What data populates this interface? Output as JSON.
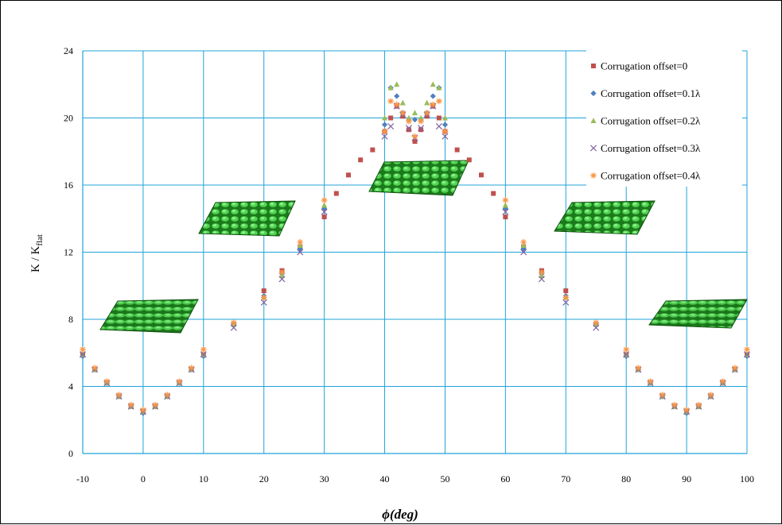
{
  "chart_data": {
    "type": "scatter",
    "title": "",
    "xlabel": "ϕ(deg)",
    "ylabel": "K / K_flat",
    "xlim": [
      -10,
      100
    ],
    "ylim": [
      0,
      24
    ],
    "xticks": [
      -10,
      0,
      10,
      20,
      30,
      40,
      50,
      60,
      70,
      80,
      90,
      100
    ],
    "yticks": [
      0,
      4,
      8,
      12,
      16,
      20,
      24
    ],
    "grid": true,
    "legend_position": "top-right",
    "series": [
      {
        "name": "Corrugation offset=0",
        "marker": "square",
        "color": "#c0504d",
        "x": [
          -10,
          -8,
          -6,
          -4,
          -2,
          0,
          2,
          4,
          6,
          8,
          10,
          15,
          20,
          23,
          26,
          30,
          32,
          34,
          36,
          38,
          40,
          41,
          42,
          43,
          44,
          45,
          46,
          47,
          48,
          49,
          50,
          52,
          54,
          56,
          58,
          60,
          63,
          66,
          70,
          75,
          80,
          82,
          84,
          86,
          88,
          90,
          92,
          94,
          96,
          98,
          100
        ],
        "y": [
          5.9,
          5.0,
          4.2,
          3.4,
          2.8,
          2.5,
          2.8,
          3.4,
          4.2,
          5.0,
          5.9,
          7.7,
          9.7,
          10.9,
          12.3,
          14.1,
          15.5,
          16.6,
          17.5,
          18.1,
          19.2,
          20.0,
          20.7,
          20.1,
          19.3,
          18.6,
          19.3,
          20.1,
          20.7,
          20.0,
          19.2,
          18.1,
          17.5,
          16.6,
          15.5,
          14.1,
          12.3,
          10.9,
          9.7,
          7.7,
          5.9,
          5.0,
          4.2,
          3.4,
          2.8,
          2.5,
          2.8,
          3.4,
          4.2,
          5.0,
          5.9
        ]
      },
      {
        "name": "Corrugation offset=0.1λ",
        "marker": "diamond",
        "color": "#4f81bd",
        "x": [
          -10,
          -8,
          -6,
          -4,
          -2,
          0,
          2,
          4,
          6,
          8,
          10,
          15,
          20,
          23,
          26,
          30,
          40,
          41,
          42,
          43,
          44,
          45,
          46,
          47,
          48,
          49,
          50,
          60,
          63,
          66,
          70,
          75,
          80,
          82,
          84,
          86,
          88,
          90,
          92,
          94,
          96,
          98,
          100
        ],
        "y": [
          5.8,
          5.0,
          4.2,
          3.4,
          2.8,
          2.4,
          2.8,
          3.4,
          4.2,
          5.0,
          5.8,
          7.7,
          9.4,
          10.7,
          12.2,
          14.6,
          19.6,
          21.8,
          21.3,
          20.3,
          19.9,
          19.9,
          19.9,
          20.3,
          21.3,
          21.8,
          19.6,
          14.6,
          12.2,
          10.7,
          9.4,
          7.7,
          5.8,
          5.0,
          4.2,
          3.4,
          2.8,
          2.4,
          2.8,
          3.4,
          4.2,
          5.0,
          5.8
        ]
      },
      {
        "name": "Corrugation offset=0.2λ",
        "marker": "triangle",
        "color": "#9bbb59",
        "x": [
          -10,
          -8,
          -6,
          -4,
          -2,
          0,
          2,
          4,
          6,
          8,
          10,
          15,
          20,
          23,
          26,
          30,
          40,
          41,
          42,
          43,
          44,
          45,
          46,
          47,
          48,
          49,
          50,
          60,
          63,
          66,
          70,
          75,
          80,
          82,
          84,
          86,
          88,
          90,
          92,
          94,
          96,
          98,
          100
        ],
        "y": [
          5.9,
          5.0,
          4.2,
          3.4,
          2.8,
          2.5,
          2.8,
          3.4,
          4.2,
          5.0,
          5.9,
          7.7,
          9.3,
          10.6,
          12.4,
          14.8,
          20.0,
          21.8,
          22.0,
          20.9,
          20.0,
          20.3,
          20.0,
          20.9,
          22.0,
          21.8,
          20.0,
          14.8,
          12.4,
          10.6,
          9.3,
          7.7,
          5.9,
          5.0,
          4.2,
          3.4,
          2.8,
          2.5,
          2.8,
          3.4,
          4.2,
          5.0,
          5.9
        ]
      },
      {
        "name": "Corrugation offset=0.3λ",
        "marker": "x",
        "color": "#8064a2",
        "x": [
          -10,
          -8,
          -6,
          -4,
          -2,
          0,
          2,
          4,
          6,
          8,
          10,
          15,
          20,
          23,
          26,
          30,
          40,
          41,
          42,
          43,
          44,
          45,
          46,
          47,
          48,
          49,
          50,
          60,
          63,
          66,
          70,
          75,
          80,
          82,
          84,
          86,
          88,
          90,
          92,
          94,
          96,
          98,
          100
        ],
        "y": [
          5.9,
          5.0,
          4.2,
          3.4,
          2.8,
          2.5,
          2.8,
          3.4,
          4.2,
          5.0,
          5.9,
          7.5,
          9.0,
          10.4,
          12.0,
          14.4,
          18.9,
          19.5,
          20.7,
          20.2,
          19.4,
          18.8,
          19.4,
          20.2,
          20.7,
          19.5,
          18.9,
          14.4,
          12.0,
          10.4,
          9.0,
          7.5,
          5.9,
          5.0,
          4.2,
          3.4,
          2.8,
          2.5,
          2.8,
          3.4,
          4.2,
          5.0,
          5.9
        ]
      },
      {
        "name": "Corrugation offset=0.4λ",
        "marker": "asterisk",
        "color": "#f79646",
        "x": [
          -10,
          -8,
          -6,
          -4,
          -2,
          0,
          2,
          4,
          6,
          8,
          10,
          15,
          20,
          23,
          26,
          30,
          40,
          41,
          42,
          43,
          44,
          45,
          46,
          47,
          48,
          49,
          50,
          60,
          63,
          66,
          70,
          75,
          80,
          82,
          84,
          86,
          88,
          90,
          92,
          94,
          96,
          98,
          100
        ],
        "y": [
          6.2,
          5.1,
          4.3,
          3.5,
          2.9,
          2.6,
          2.9,
          3.5,
          4.3,
          5.1,
          6.2,
          7.8,
          9.3,
          10.8,
          12.6,
          15.1,
          19.2,
          21.0,
          20.8,
          20.3,
          19.8,
          18.9,
          19.8,
          20.3,
          20.8,
          21.0,
          19.2,
          15.1,
          12.6,
          10.8,
          9.3,
          7.8,
          6.2,
          5.1,
          4.3,
          3.5,
          2.9,
          2.6,
          2.9,
          3.5,
          4.3,
          5.1,
          6.2
        ]
      }
    ]
  }
}
